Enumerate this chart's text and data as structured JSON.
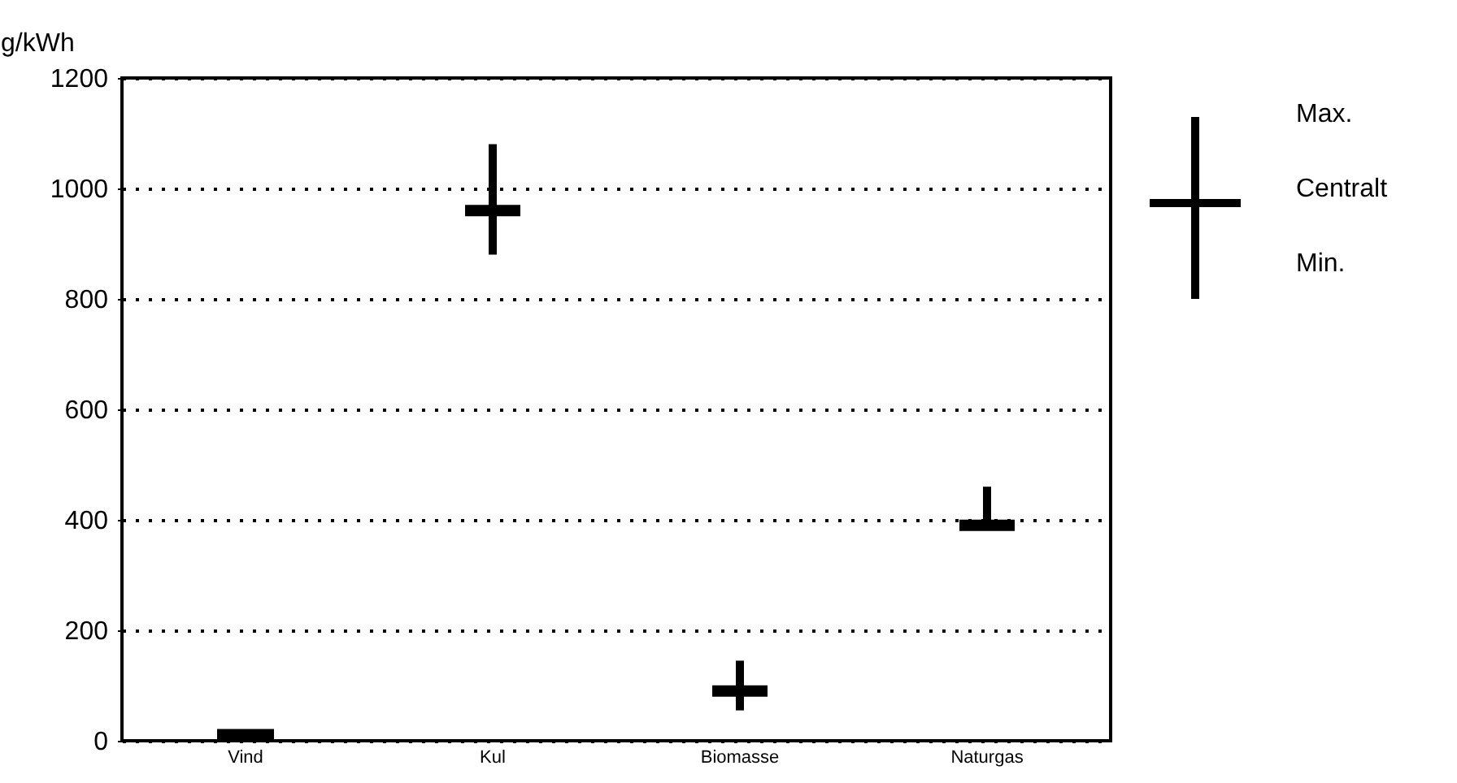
{
  "chart_data": {
    "type": "box",
    "ylabel": "g/kWh",
    "categories": [
      "Vind",
      "Kul",
      "Biomasse",
      "Naturgas"
    ],
    "boxes": [
      {
        "low": 0,
        "q1": 0,
        "median": 10,
        "q3": 20,
        "high": 20
      },
      {
        "low": 880,
        "q1": 960,
        "median": 960,
        "q3": 960,
        "high": 1080
      },
      {
        "low": 55,
        "q1": 90,
        "median": 90,
        "q3": 90,
        "high": 145
      },
      {
        "low": 390,
        "q1": 390,
        "median": 390,
        "q3": 390,
        "high": 460
      }
    ],
    "ylim": [
      0,
      1200
    ],
    "yticks": [
      0,
      200,
      400,
      600,
      800,
      1000,
      1200
    ],
    "grid": "y",
    "line_style": "dotted",
    "color": "#000000",
    "annotations": [
      "Max.",
      "Centralt",
      "Min."
    ]
  }
}
